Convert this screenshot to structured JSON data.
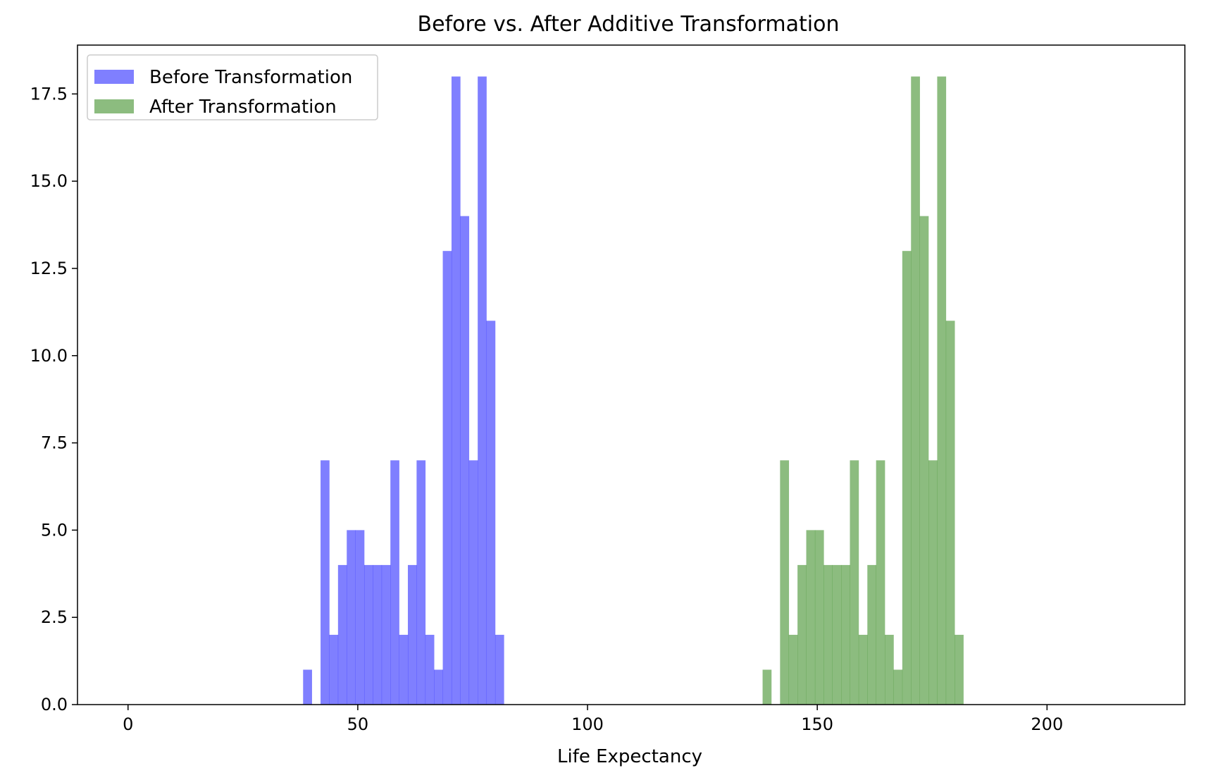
{
  "chart_data": {
    "type": "bar",
    "title": "Before vs. After Additive Transformation",
    "xlabel": "Life Expectancy",
    "ylabel": "",
    "xlim": [
      -11,
      230
    ],
    "ylim": [
      0,
      18.9
    ],
    "xticks": [
      0,
      50,
      100,
      150,
      200
    ],
    "yticks": [
      0.0,
      2.5,
      5.0,
      7.5,
      10.0,
      12.5,
      15.0,
      17.5
    ],
    "xtick_labels": [
      "0",
      "50",
      "100",
      "150",
      "200"
    ],
    "ytick_labels": [
      "0.0",
      "2.5",
      "5.0",
      "7.5",
      "10.0",
      "12.5",
      "15.0",
      "17.5"
    ],
    "grid": false,
    "legend_position": "upper-left",
    "bin_width": 1.9,
    "series": [
      {
        "name": "Before Transformation",
        "color": "#0000ff",
        "opacity": 0.5,
        "bin_start": 38.1,
        "counts": [
          1,
          0,
          7,
          2,
          4,
          5,
          5,
          4,
          4,
          4,
          7,
          2,
          4,
          7,
          2,
          1,
          13,
          18,
          14,
          7,
          18,
          11,
          2
        ]
      },
      {
        "name": "After Transformation",
        "color": "#1a7a00",
        "opacity": 0.5,
        "bin_start": 138.1,
        "counts": [
          1,
          0,
          7,
          2,
          4,
          5,
          5,
          4,
          4,
          4,
          7,
          2,
          4,
          7,
          2,
          1,
          13,
          18,
          14,
          7,
          18,
          11,
          2
        ]
      }
    ]
  }
}
